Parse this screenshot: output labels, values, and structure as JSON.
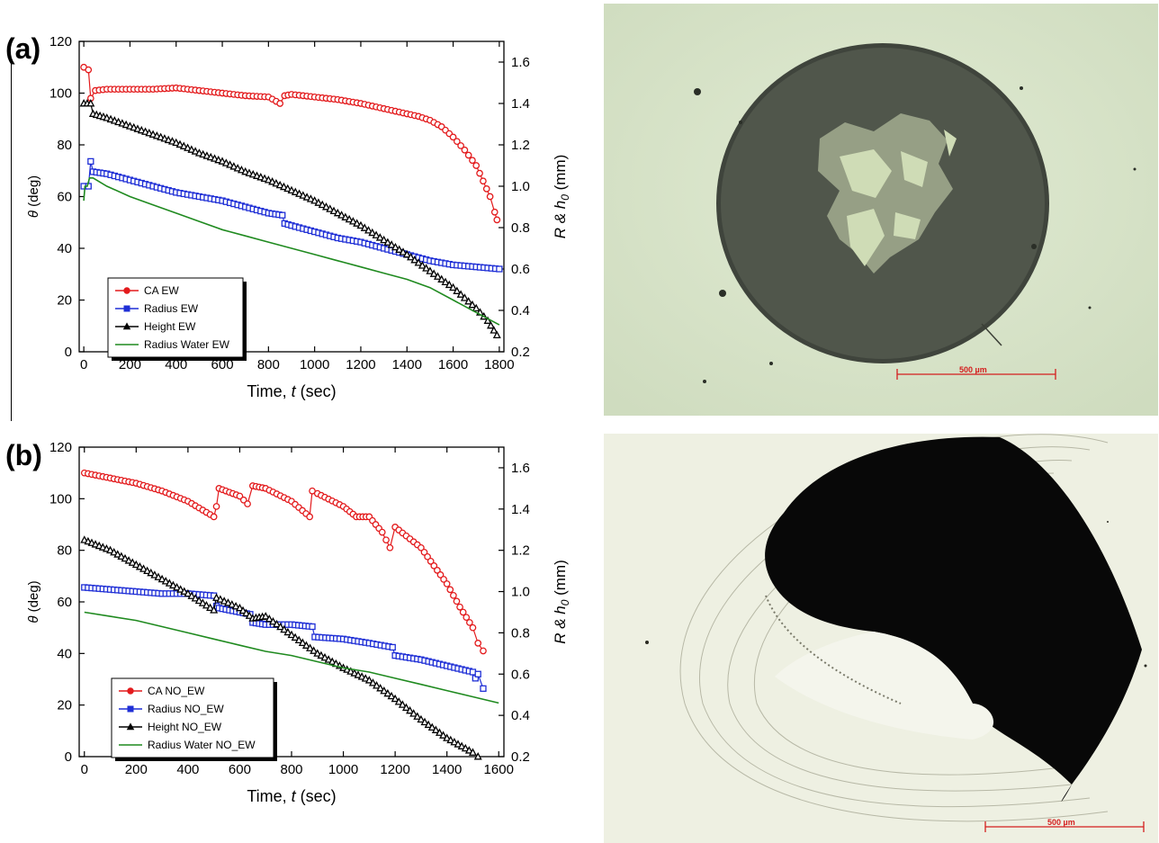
{
  "panels": [
    {
      "label": "(a)"
    },
    {
      "label": "(b)"
    }
  ],
  "micrographs": [
    {
      "name": "micrograph-ew",
      "scale_bar_label": "500 µm"
    },
    {
      "name": "micrograph-no-ew",
      "scale_bar_label": "500 µm"
    }
  ],
  "colors": {
    "ca": "#e31a1c",
    "radius": "#1f2fd6",
    "height": "#000000",
    "water": "#1f8a1f",
    "scale_bar": "#d41e1e",
    "photo_a_bg": "#dbe6cc",
    "photo_a_drop": "#4c5147",
    "photo_b_bg": "#eef0e2",
    "photo_b_drop": "#080808"
  },
  "chart_data": [
    {
      "type": "line",
      "xlabel_prefix": "Time, ",
      "xlabel_var": "t",
      "xlabel_suffix": " (sec)",
      "ylabel_var": "θ",
      "ylabel_suffix": " (deg)",
      "y2label": "R & h",
      "y2label_sub": "0",
      "y2label_suffix": " (mm)",
      "xlim": [
        -20,
        1820
      ],
      "ylim": [
        0,
        120
      ],
      "y2lim": [
        0.2,
        1.7
      ],
      "xticks": [
        0,
        200,
        400,
        600,
        800,
        1000,
        1200,
        1400,
        1600,
        1800
      ],
      "yticks": [
        0,
        20,
        40,
        60,
        80,
        100,
        120
      ],
      "y2ticks": [
        0.2,
        0.4,
        0.6,
        0.8,
        1.0,
        1.2,
        1.4,
        1.6
      ],
      "y2tick_labels": [
        "0.2",
        "0.4",
        "0.6",
        "0.8",
        "1.0",
        "1.2",
        "1.4",
        "1.6"
      ],
      "legend_position": "bottom-left",
      "series": [
        {
          "name": "CA EW",
          "key": "ca",
          "axis": "left",
          "marker": "circle",
          "x": [
            0,
            20,
            30,
            50,
            100,
            200,
            300,
            400,
            500,
            600,
            700,
            800,
            850,
            870,
            900,
            1000,
            1100,
            1200,
            1300,
            1400,
            1450,
            1500,
            1550,
            1600,
            1650,
            1700,
            1730,
            1760,
            1780,
            1790
          ],
          "y": [
            110,
            109,
            98,
            101,
            101.5,
            101.5,
            101.5,
            102,
            101,
            100,
            99,
            98.5,
            96,
            99,
            99.5,
            98.5,
            97.5,
            96,
            94,
            92,
            91,
            89.5,
            87,
            83,
            78,
            72,
            66,
            60,
            54,
            51
          ]
        },
        {
          "name": "Radius EW",
          "key": "radius",
          "axis": "right",
          "marker": "square",
          "x": [
            0,
            20,
            30,
            40,
            100,
            200,
            300,
            400,
            500,
            600,
            700,
            800,
            860,
            870,
            900,
            1000,
            1100,
            1200,
            1300,
            1400,
            1500,
            1600,
            1700,
            1800
          ],
          "y": [
            1.0,
            1.0,
            1.12,
            1.07,
            1.06,
            1.03,
            1.0,
            0.97,
            0.95,
            0.93,
            0.9,
            0.87,
            0.86,
            0.82,
            0.81,
            0.78,
            0.75,
            0.73,
            0.7,
            0.67,
            0.64,
            0.62,
            0.61,
            0.6
          ]
        },
        {
          "name": "Height EW",
          "key": "height",
          "axis": "right",
          "marker": "triangle",
          "x": [
            0,
            30,
            40,
            100,
            200,
            300,
            400,
            500,
            600,
            700,
            800,
            900,
            1000,
            1100,
            1200,
            1300,
            1400,
            1500,
            1600,
            1700,
            1750,
            1790
          ],
          "y": [
            1.4,
            1.4,
            1.35,
            1.33,
            1.29,
            1.25,
            1.21,
            1.16,
            1.12,
            1.07,
            1.03,
            0.98,
            0.93,
            0.87,
            0.81,
            0.74,
            0.67,
            0.59,
            0.51,
            0.41,
            0.35,
            0.28
          ]
        },
        {
          "name": "Radius Water EW",
          "key": "water",
          "axis": "right",
          "marker": "none",
          "x": [
            0,
            5,
            15,
            25,
            40,
            100,
            200,
            300,
            400,
            500,
            600,
            700,
            800,
            900,
            1000,
            1100,
            1200,
            1300,
            1400,
            1500,
            1600,
            1700,
            1750,
            1800
          ],
          "y": [
            0.93,
            1.0,
            1.0,
            1.04,
            1.04,
            1.0,
            0.95,
            0.91,
            0.87,
            0.83,
            0.79,
            0.76,
            0.73,
            0.7,
            0.67,
            0.64,
            0.61,
            0.58,
            0.55,
            0.51,
            0.45,
            0.39,
            0.36,
            0.33
          ]
        }
      ]
    },
    {
      "type": "line",
      "xlabel_prefix": "Time, ",
      "xlabel_var": "t",
      "xlabel_suffix": " (sec)",
      "ylabel_var": "θ",
      "ylabel_suffix": " (deg)",
      "y2label": "R & h",
      "y2label_sub": "0",
      "y2label_suffix": " (mm)",
      "xlim": [
        -20,
        1620
      ],
      "ylim": [
        0,
        120
      ],
      "y2lim": [
        0.2,
        1.7
      ],
      "xticks": [
        0,
        200,
        400,
        600,
        800,
        1000,
        1200,
        1400,
        1600
      ],
      "yticks": [
        0,
        20,
        40,
        60,
        80,
        100,
        120
      ],
      "y2ticks": [
        0.2,
        0.4,
        0.6,
        0.8,
        1.0,
        1.2,
        1.4,
        1.6
      ],
      "y2tick_labels": [
        "0.2",
        "0.4",
        "0.6",
        "0.8",
        "1.0",
        "1.2",
        "1.4",
        "1.6"
      ],
      "legend_position": "bottom-left",
      "series": [
        {
          "name": "CA NO_EW",
          "key": "ca",
          "axis": "left",
          "marker": "circle",
          "x": [
            0,
            100,
            200,
            300,
            400,
            500,
            510,
            520,
            600,
            630,
            650,
            700,
            800,
            870,
            880,
            900,
            1000,
            1050,
            1100,
            1150,
            1180,
            1200,
            1300,
            1350,
            1400,
            1450,
            1500,
            1520,
            1540
          ],
          "y": [
            110,
            108,
            106,
            103,
            99,
            93,
            97,
            104,
            101,
            98,
            105,
            104,
            99,
            93,
            103,
            102,
            97,
            93,
            93,
            87,
            81,
            89,
            81,
            74,
            67,
            58,
            50,
            44,
            41
          ]
        },
        {
          "name": "Radius NO_EW",
          "key": "radius",
          "axis": "right",
          "marker": "square",
          "x": [
            0,
            100,
            200,
            300,
            400,
            500,
            510,
            520,
            600,
            640,
            650,
            700,
            800,
            880,
            890,
            1000,
            1100,
            1190,
            1200,
            1300,
            1400,
            1500,
            1510,
            1520,
            1540
          ],
          "y": [
            1.02,
            1.01,
            1.0,
            0.99,
            0.99,
            0.98,
            0.93,
            0.92,
            0.9,
            0.89,
            0.85,
            0.84,
            0.84,
            0.83,
            0.78,
            0.77,
            0.75,
            0.73,
            0.69,
            0.67,
            0.64,
            0.61,
            0.58,
            0.6,
            0.53
          ]
        },
        {
          "name": "Height NO_EW",
          "key": "height",
          "axis": "right",
          "marker": "triangle",
          "x": [
            0,
            100,
            200,
            300,
            400,
            500,
            510,
            600,
            650,
            700,
            800,
            900,
            1000,
            1100,
            1200,
            1300,
            1400,
            1500,
            1520
          ],
          "y": [
            1.25,
            1.2,
            1.13,
            1.06,
            0.99,
            0.91,
            0.97,
            0.92,
            0.87,
            0.88,
            0.79,
            0.7,
            0.63,
            0.57,
            0.48,
            0.38,
            0.29,
            0.22,
            0.2
          ]
        },
        {
          "name": "Radius Water NO_EW",
          "key": "water",
          "axis": "right",
          "marker": "none",
          "x": [
            0,
            100,
            200,
            300,
            400,
            500,
            600,
            700,
            800,
            900,
            1000,
            1100,
            1200,
            1300,
            1400,
            1500,
            1600
          ],
          "y": [
            0.9,
            0.88,
            0.86,
            0.83,
            0.8,
            0.77,
            0.74,
            0.71,
            0.69,
            0.66,
            0.63,
            0.61,
            0.58,
            0.55,
            0.52,
            0.49,
            0.46
          ]
        }
      ]
    }
  ]
}
